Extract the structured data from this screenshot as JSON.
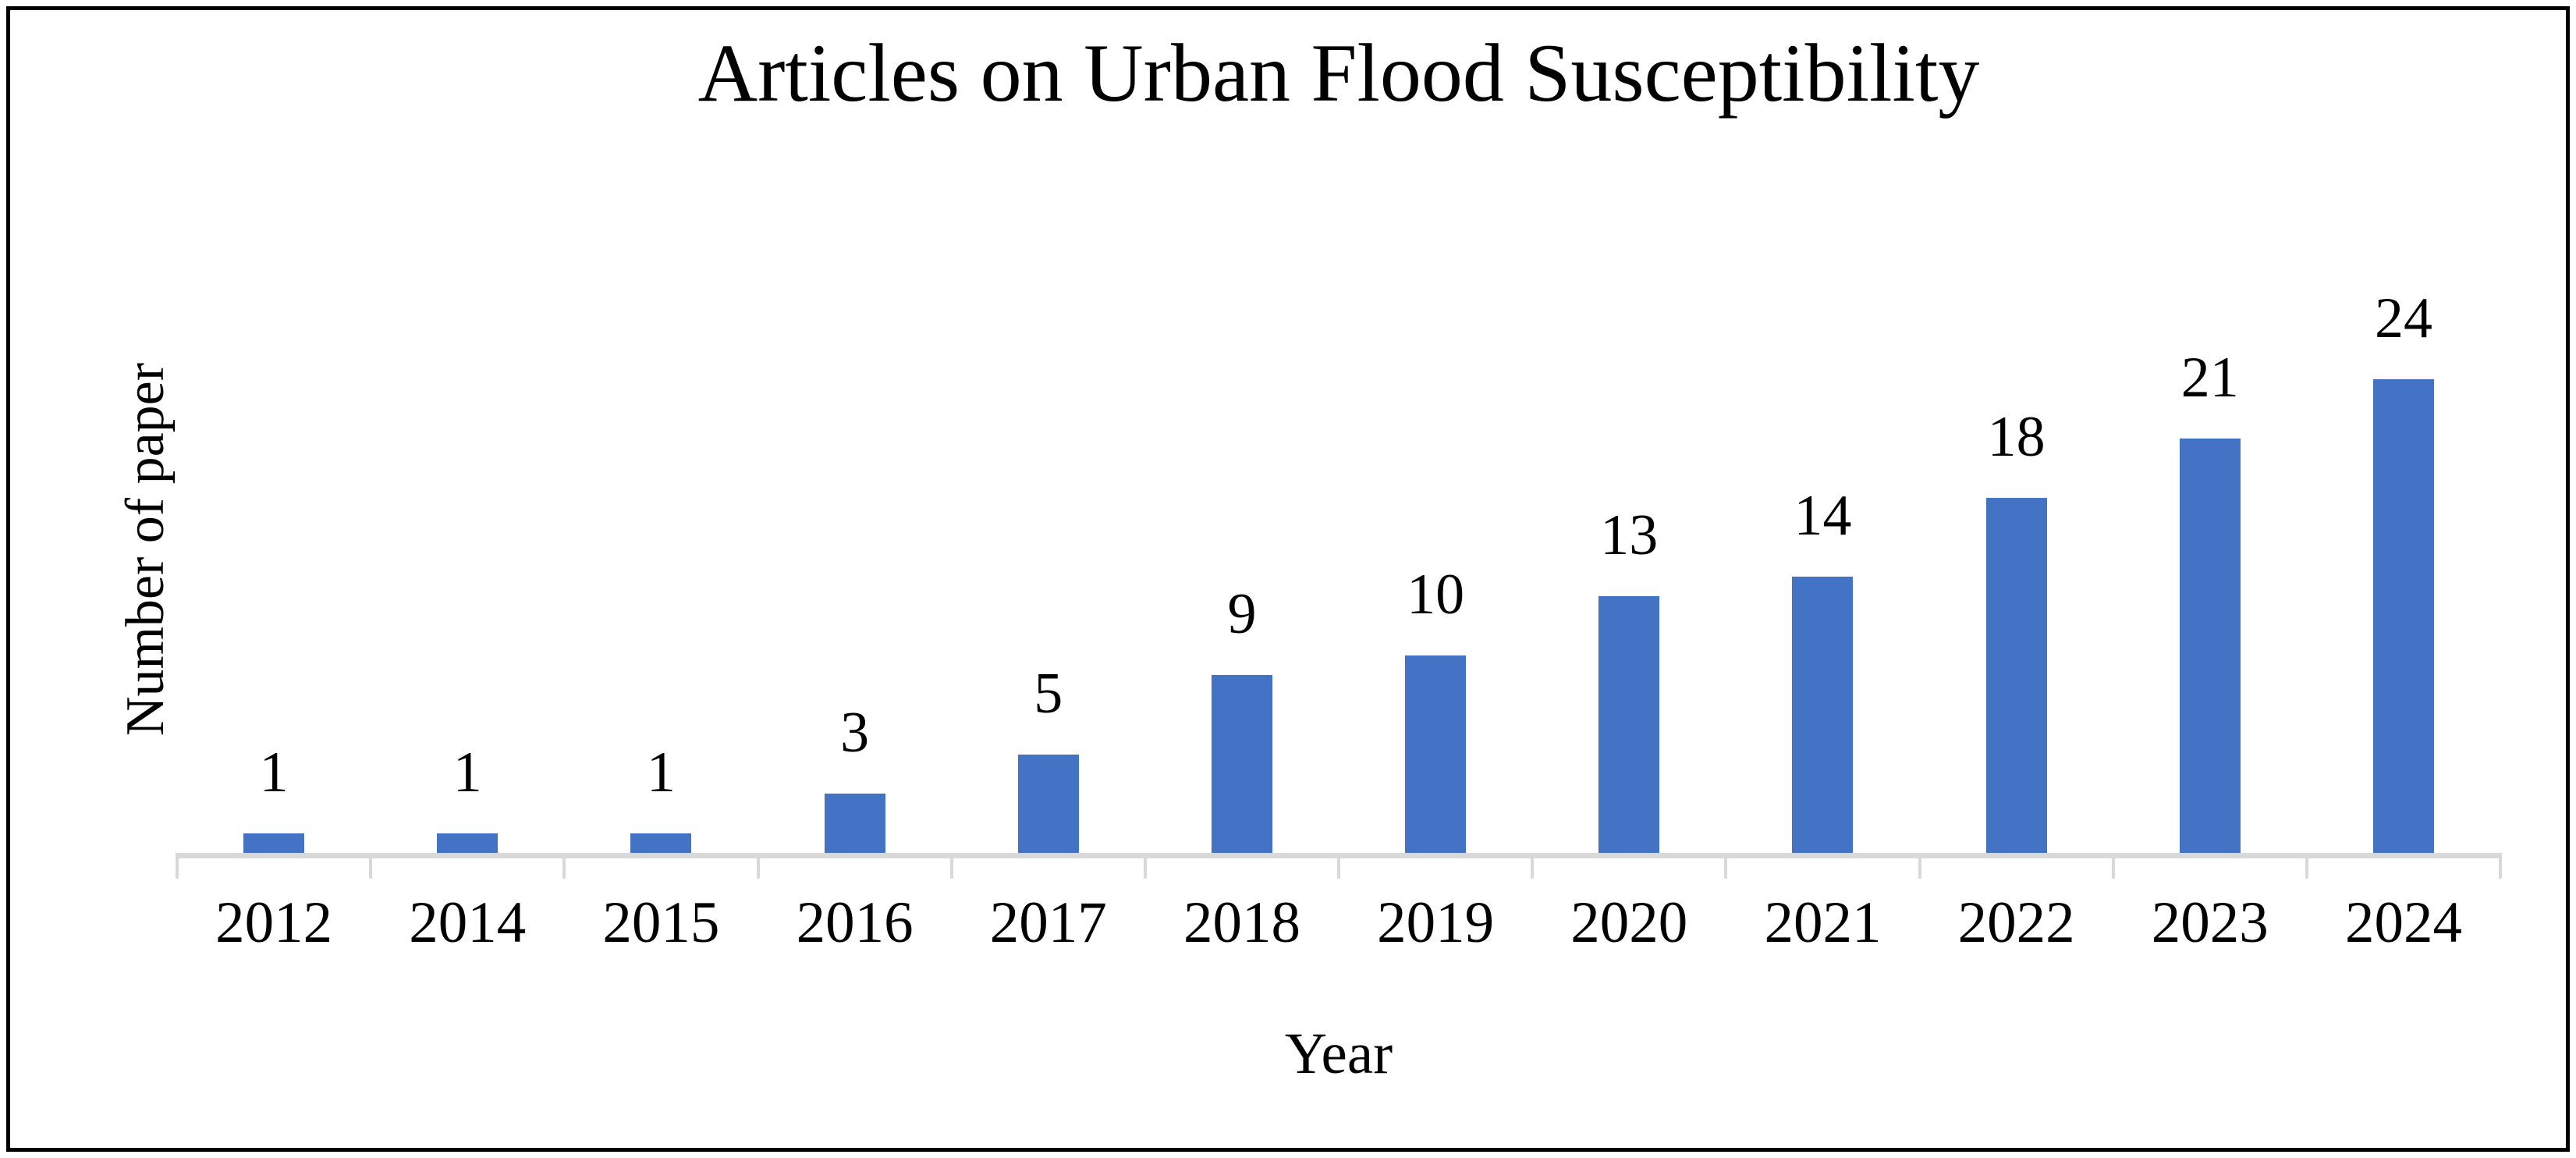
{
  "chart_data": {
    "type": "bar",
    "title": "Articles on Urban Flood Susceptibility",
    "xlabel": "Year",
    "ylabel": "Number of paper",
    "categories": [
      "2012",
      "2014",
      "2015",
      "2016",
      "2017",
      "2018",
      "2019",
      "2020",
      "2021",
      "2022",
      "2023",
      "2024"
    ],
    "values": [
      1,
      1,
      1,
      3,
      5,
      9,
      10,
      13,
      14,
      18,
      21,
      24
    ],
    "data_labels": [
      "1",
      "1",
      "1",
      "3",
      "5",
      "9",
      "10",
      "13",
      "14",
      "18",
      "21",
      "24"
    ],
    "ylim": [
      0,
      24
    ],
    "grid": "off",
    "legend": "none",
    "bar_color": "#4472C4",
    "axis_color": "#D9D9D9",
    "text_color": "#000000"
  }
}
